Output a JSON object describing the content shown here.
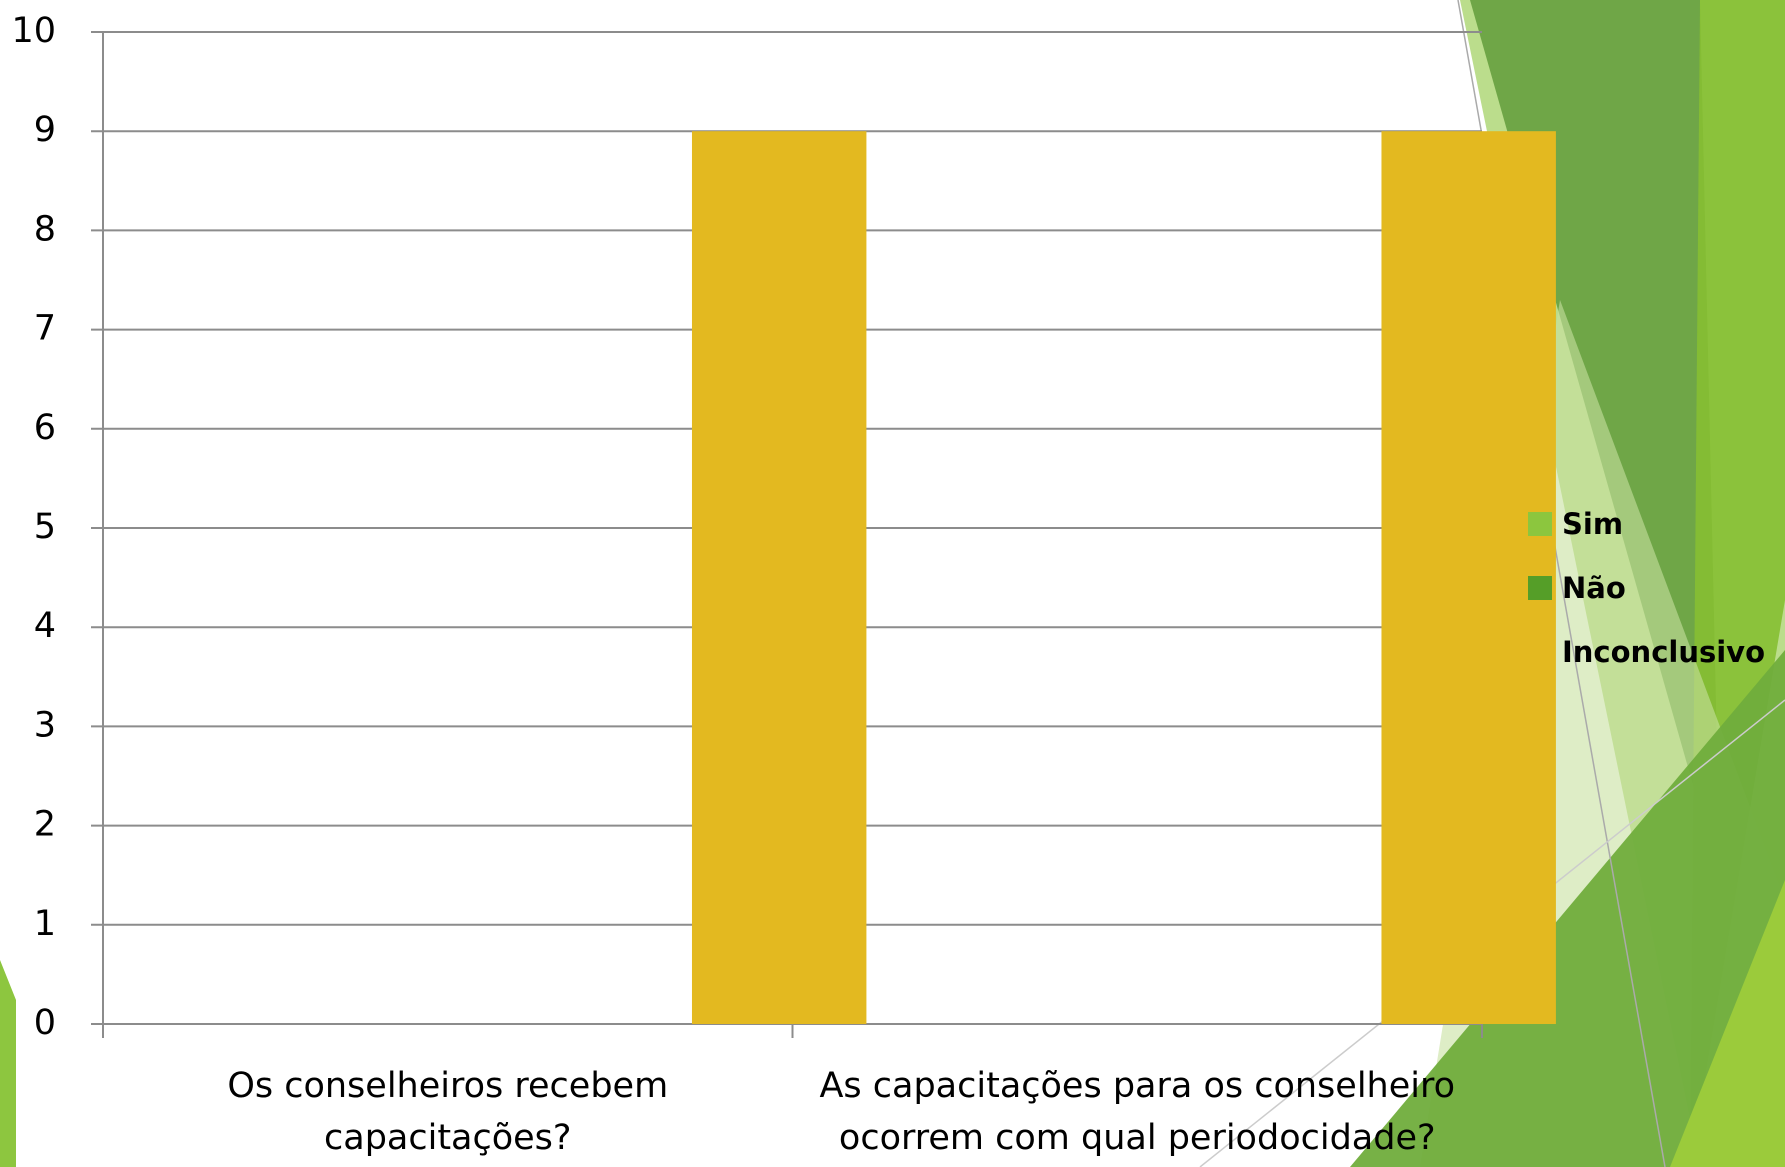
{
  "chart_data": {
    "type": "bar",
    "categories": [
      "Os conselheiros recebem capacitações?",
      "As capacitações para os conselheiro ocorrem com qual periodocidade?"
    ],
    "series": [
      {
        "name": "Sim",
        "color": "#8cc63e",
        "values": [
          0,
          0
        ]
      },
      {
        "name": "Não",
        "color": "#559e28",
        "values": [
          0,
          0
        ]
      },
      {
        "name": "Inconclusivo",
        "color": "#e3b920",
        "values": [
          9,
          9
        ]
      }
    ],
    "ylim": [
      0,
      10
    ],
    "yticks": [
      0,
      1,
      2,
      3,
      4,
      5,
      6,
      7,
      8,
      9,
      10
    ],
    "grid": true,
    "legend": "right"
  }
}
